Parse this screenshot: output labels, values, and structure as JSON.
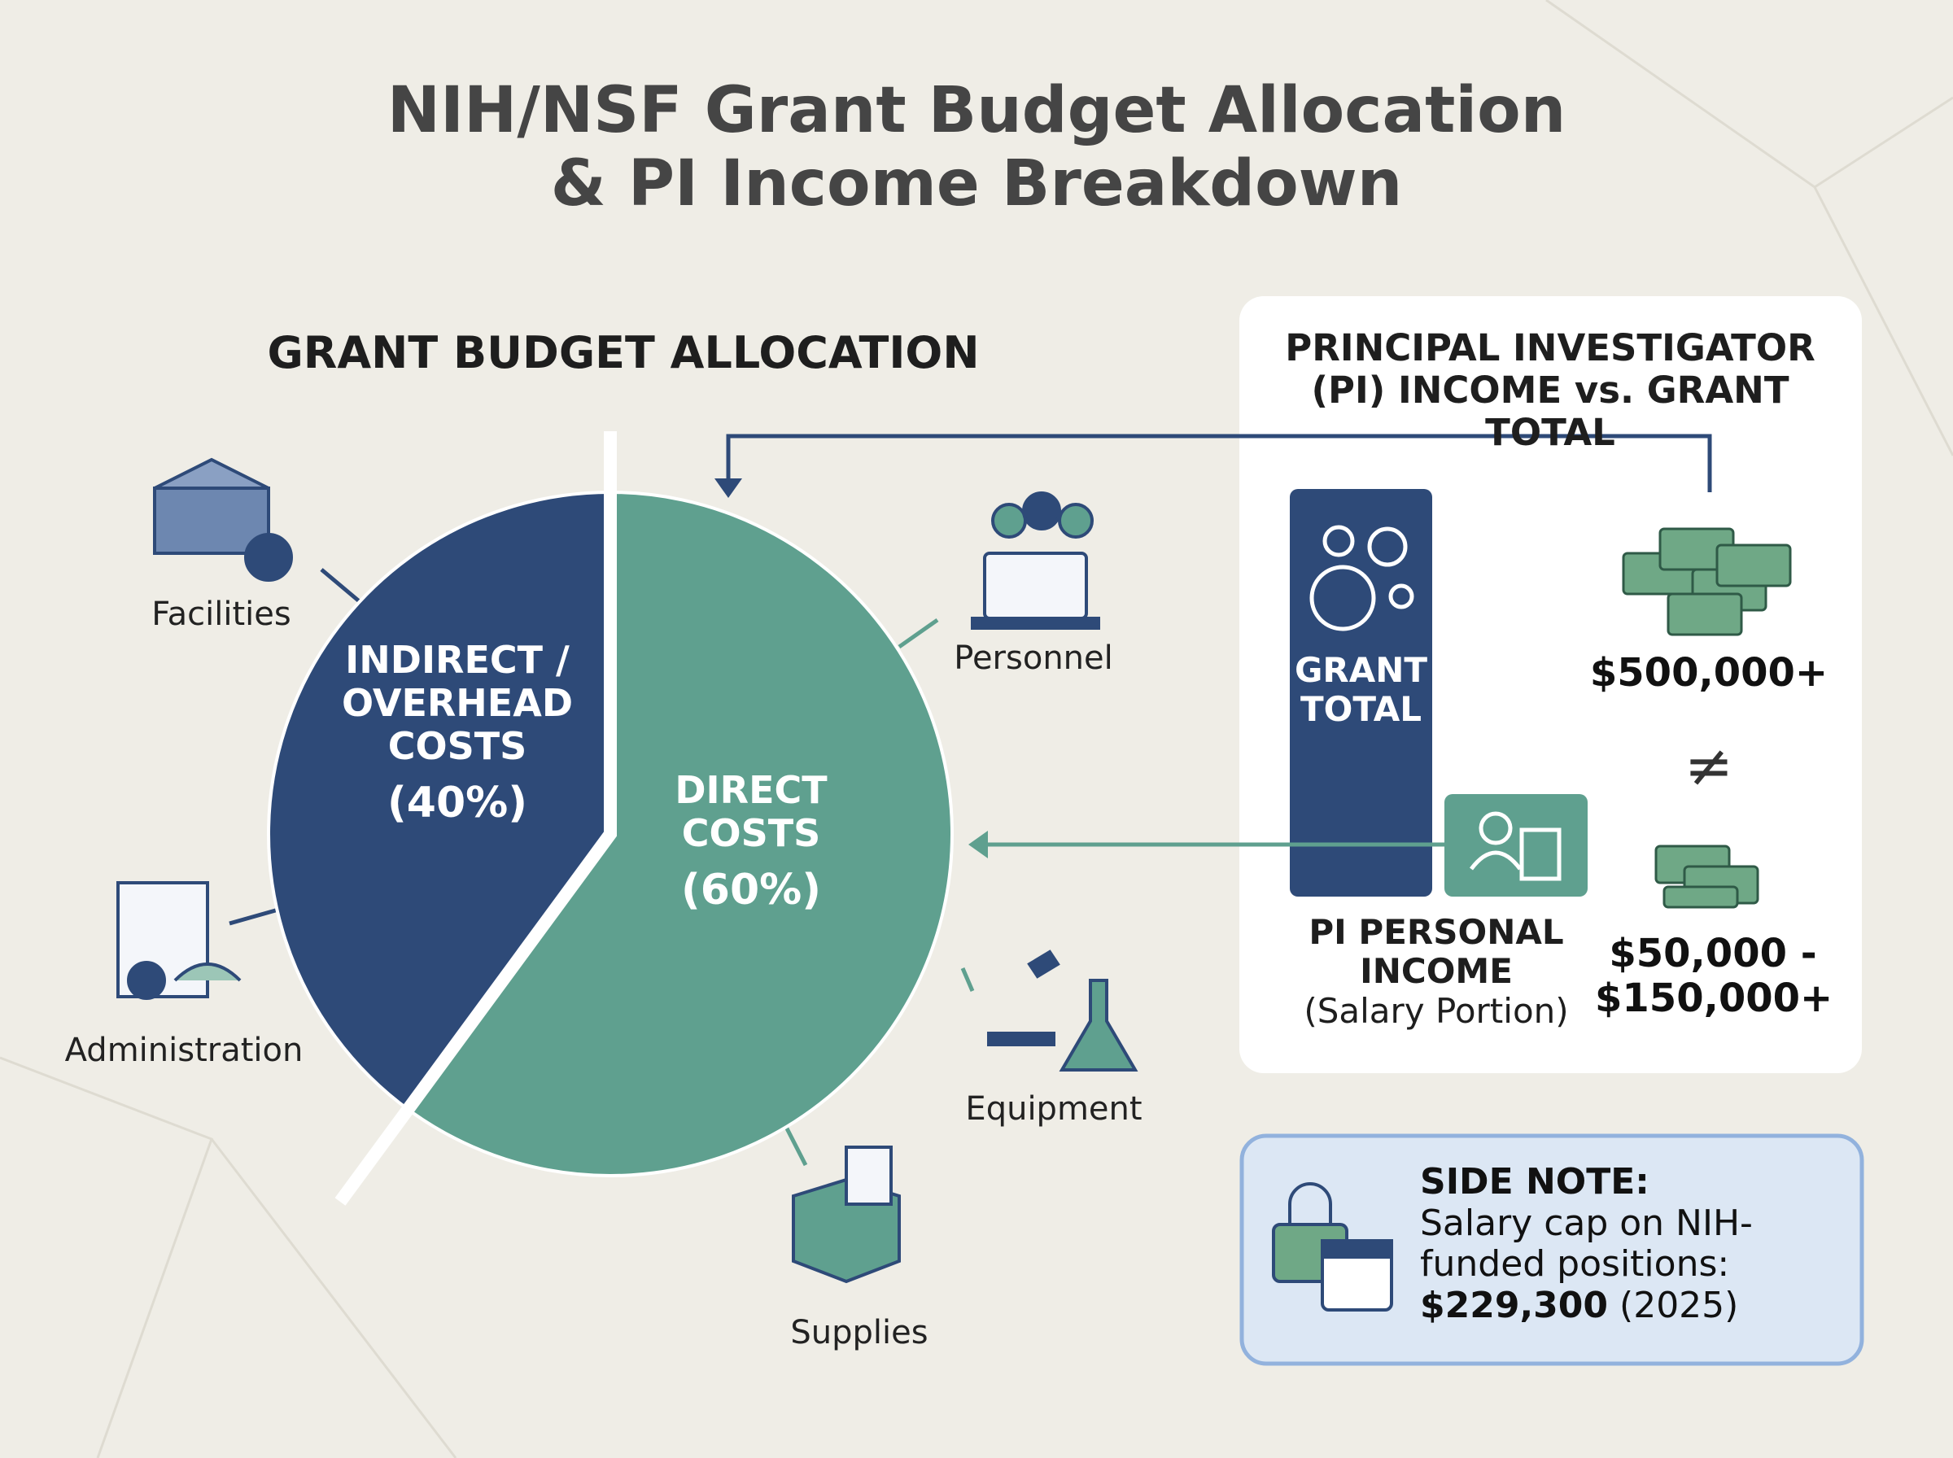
{
  "title": [
    "NIH/NSF Grant Budget Allocation",
    "& PI Income Breakdown"
  ],
  "chart_data": {
    "type": "pie",
    "title": "GRANT BUDGET ALLOCATION",
    "categories": [
      "INDIRECT / OVERHEAD COSTS",
      "DIRECT COSTS"
    ],
    "values": [
      40,
      60
    ],
    "value_labels": [
      "(40%)",
      "(60%)"
    ],
    "colors": [
      "#2e4a78",
      "#5fa08f"
    ]
  },
  "callouts": [
    "Facilities",
    "Administration",
    "Personnel",
    "Equipment",
    "Supplies"
  ],
  "pi_panel": {
    "title": "PRINCIPAL INVESTIGATOR (PI) INCOME vs. GRANT TOTAL",
    "grant_total_label": "GRANT TOTAL",
    "grant_total_amount": "$500,000+",
    "not_equal": "≠",
    "pi_income_label": "PI PERSONAL INCOME",
    "pi_income_note": "(Salary Portion)",
    "pi_income_amount": "$50,000 - $150,000+"
  },
  "side_note": {
    "heading": "SIDE NOTE:",
    "text": "Salary cap on NIH-funded positions:",
    "amount": "$229,300",
    "year": "(2025)"
  }
}
